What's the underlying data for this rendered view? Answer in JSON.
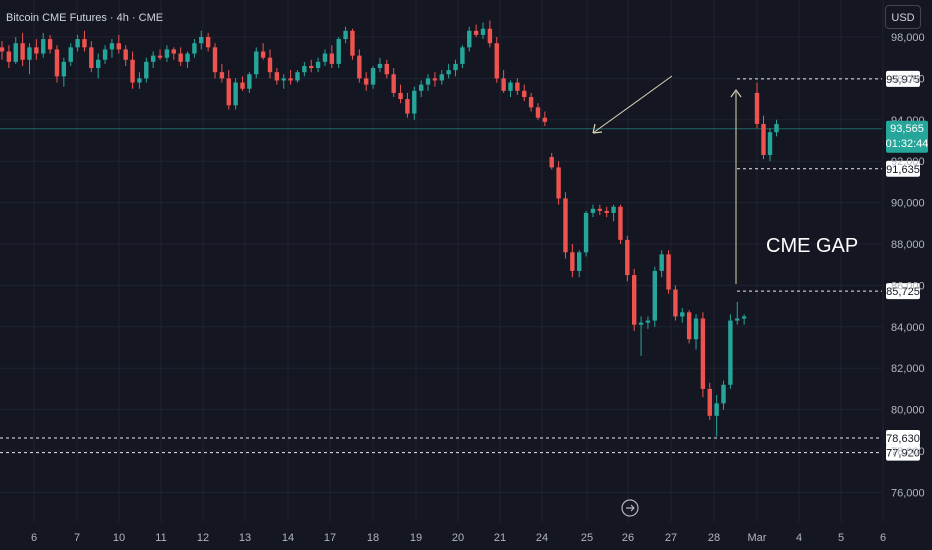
{
  "title": "Bitcoin CME Futures · 4h · CME",
  "currency_button": "USD",
  "current_price": {
    "value": "93,565",
    "countdown": "01:32:44"
  },
  "annotation_text": "CME GAP",
  "colors": {
    "up": "#26a69a",
    "down": "#ef5350",
    "background": "#141722",
    "price_line": "#26a69a"
  },
  "chart_data": {
    "type": "candlestick",
    "title": "Bitcoin CME Futures · 4h · CME",
    "y_ticks": [
      76000,
      78000,
      80000,
      82000,
      84000,
      86000,
      88000,
      90000,
      92000,
      94000,
      96000,
      98000
    ],
    "y_tick_labels": [
      "76,000",
      "78,000",
      "80,000",
      "82,000",
      "84,000",
      "86,000",
      "88,000",
      "90,000",
      "92,000",
      "94,000",
      "96,000",
      "98,000"
    ],
    "ylim": [
      75000,
      99000
    ],
    "x_labels": [
      "6",
      "7",
      "10",
      "11",
      "12",
      "13",
      "14",
      "17",
      "18",
      "19",
      "20",
      "21",
      "24",
      "25",
      "26",
      "27",
      "28",
      "Mar",
      "4",
      "5",
      "6"
    ],
    "horizontal_levels": [
      {
        "value": 95975,
        "label": "95,975"
      },
      {
        "value": 91635,
        "label": "91,635"
      },
      {
        "value": 85725,
        "label": "85,725"
      },
      {
        "value": 78630,
        "label": "78,630"
      },
      {
        "value": 77920,
        "label": "77,920"
      }
    ],
    "candles": [
      [
        97500,
        97800,
        96900,
        97300
      ],
      [
        97300,
        97600,
        96500,
        96800
      ],
      [
        96800,
        98000,
        96700,
        97700
      ],
      [
        97700,
        98200,
        96600,
        96900
      ],
      [
        96900,
        97700,
        96200,
        97500
      ],
      [
        97500,
        97900,
        96900,
        97200
      ],
      [
        97200,
        98200,
        97000,
        97900
      ],
      [
        97900,
        98100,
        97200,
        97400
      ],
      [
        97400,
        97600,
        95800,
        96100
      ],
      [
        96100,
        97000,
        95600,
        96800
      ],
      [
        96800,
        97700,
        96600,
        97500
      ],
      [
        97500,
        98100,
        97300,
        97900
      ],
      [
        97900,
        98300,
        97300,
        97500
      ],
      [
        97500,
        97800,
        96300,
        96500
      ],
      [
        96500,
        97200,
        96000,
        96900
      ],
      [
        96900,
        97600,
        96700,
        97400
      ],
      [
        97400,
        97900,
        97000,
        97700
      ],
      [
        97700,
        98100,
        97200,
        97400
      ],
      [
        97400,
        97600,
        96600,
        96900
      ],
      [
        96900,
        97300,
        95500,
        95800
      ],
      [
        95800,
        96300,
        95500,
        96000
      ],
      [
        96000,
        97000,
        95800,
        96800
      ],
      [
        96800,
        97300,
        96500,
        97100
      ],
      [
        97100,
        97400,
        96900,
        97000
      ],
      [
        97000,
        97600,
        96800,
        97400
      ],
      [
        97400,
        97500,
        96900,
        97200
      ],
      [
        97200,
        97500,
        96600,
        96800
      ],
      [
        96800,
        97300,
        96500,
        97200
      ],
      [
        97200,
        97900,
        97000,
        97700
      ],
      [
        97700,
        98300,
        97400,
        98000
      ],
      [
        98000,
        98200,
        97300,
        97500
      ],
      [
        97500,
        97700,
        96000,
        96300
      ],
      [
        96300,
        96700,
        95800,
        96000
      ],
      [
        96000,
        96400,
        94500,
        94700
      ],
      [
        94700,
        96000,
        94500,
        95800
      ],
      [
        95800,
        96100,
        95400,
        95500
      ],
      [
        95500,
        96300,
        95300,
        96200
      ],
      [
        96200,
        97500,
        96000,
        97300
      ],
      [
        97300,
        97700,
        96900,
        97000
      ],
      [
        97000,
        97400,
        96000,
        96300
      ],
      [
        96300,
        96500,
        95700,
        95900
      ],
      [
        95900,
        96200,
        95500,
        96000
      ],
      [
        96000,
        96400,
        95700,
        95900
      ],
      [
        95900,
        96400,
        95800,
        96300
      ],
      [
        96300,
        96800,
        96100,
        96600
      ],
      [
        96600,
        96900,
        96300,
        96500
      ],
      [
        96500,
        97000,
        96300,
        96800
      ],
      [
        96800,
        97400,
        96600,
        97200
      ],
      [
        97200,
        97600,
        96500,
        96700
      ],
      [
        96700,
        98000,
        96500,
        97900
      ],
      [
        97900,
        98500,
        97700,
        98300
      ],
      [
        98300,
        98400,
        96900,
        97100
      ],
      [
        97100,
        97400,
        95800,
        96000
      ],
      [
        96000,
        96300,
        95400,
        95700
      ],
      [
        95700,
        96600,
        95500,
        96500
      ],
      [
        96500,
        97000,
        96300,
        96700
      ],
      [
        96700,
        96900,
        96000,
        96200
      ],
      [
        96200,
        96500,
        95100,
        95300
      ],
      [
        95300,
        95700,
        94800,
        95000
      ],
      [
        95000,
        95300,
        94100,
        94300
      ],
      [
        94300,
        95600,
        94000,
        95400
      ],
      [
        95400,
        95900,
        95100,
        95700
      ],
      [
        95700,
        96200,
        95400,
        96000
      ],
      [
        96000,
        96300,
        95600,
        95900
      ],
      [
        95900,
        96400,
        95700,
        96200
      ],
      [
        96200,
        96700,
        96000,
        96400
      ],
      [
        96400,
        96900,
        96100,
        96700
      ],
      [
        96700,
        97600,
        96500,
        97500
      ],
      [
        97500,
        98500,
        97300,
        98300
      ],
      [
        98300,
        98600,
        98000,
        98100
      ],
      [
        98100,
        98700,
        97900,
        98400
      ],
      [
        98400,
        98800,
        97500,
        97700
      ],
      [
        97700,
        98000,
        95800,
        96000
      ],
      [
        96000,
        96400,
        95300,
        95400
      ],
      [
        95400,
        95900,
        95100,
        95800
      ],
      [
        95800,
        96000,
        95200,
        95400
      ],
      [
        95400,
        95700,
        94900,
        95100
      ],
      [
        95100,
        95300,
        94400,
        94600
      ],
      [
        94600,
        94800,
        94000,
        94100
      ],
      [
        94100,
        94400,
        93700,
        93900
      ],
      [
        92200,
        92400,
        91600,
        91700
      ],
      [
        91700,
        92000,
        89900,
        90200
      ],
      [
        90200,
        90500,
        87300,
        87600
      ],
      [
        87600,
        88000,
        86400,
        86700
      ],
      [
        86700,
        87700,
        86400,
        87600
      ],
      [
        87600,
        89600,
        87400,
        89500
      ],
      [
        89500,
        89900,
        89300,
        89700
      ],
      [
        89700,
        89900,
        89400,
        89600
      ],
      [
        89600,
        89800,
        89300,
        89500
      ],
      [
        89500,
        89900,
        89100,
        89800
      ],
      [
        89800,
        89900,
        88000,
        88200
      ],
      [
        88200,
        88400,
        86200,
        86500
      ],
      [
        86500,
        86800,
        83800,
        84100
      ],
      [
        84100,
        84500,
        82600,
        84200
      ],
      [
        84200,
        84500,
        83900,
        84300
      ],
      [
        84300,
        86900,
        84000,
        86700
      ],
      [
        86700,
        87700,
        86400,
        87500
      ],
      [
        87500,
        87700,
        85600,
        85800
      ],
      [
        85800,
        86000,
        84300,
        84500
      ],
      [
        84500,
        84900,
        84200,
        84700
      ],
      [
        84700,
        84800,
        83200,
        83400
      ],
      [
        83400,
        84600,
        82900,
        84400
      ],
      [
        84400,
        84700,
        80600,
        81000
      ],
      [
        81000,
        81300,
        79500,
        79700
      ],
      [
        79700,
        80700,
        78700,
        80300
      ],
      [
        80300,
        81400,
        80000,
        81200
      ],
      [
        81200,
        84600,
        81000,
        84300
      ],
      [
        84300,
        85200,
        84100,
        84400
      ],
      [
        84400,
        84600,
        84100,
        84500
      ],
      [
        95300,
        95800,
        93600,
        93800
      ],
      [
        93800,
        94200,
        92100,
        92300
      ],
      [
        92300,
        93600,
        92000,
        93400
      ],
      [
        93400,
        94000,
        93200,
        93800
      ]
    ],
    "annotation": "CME GAP"
  }
}
